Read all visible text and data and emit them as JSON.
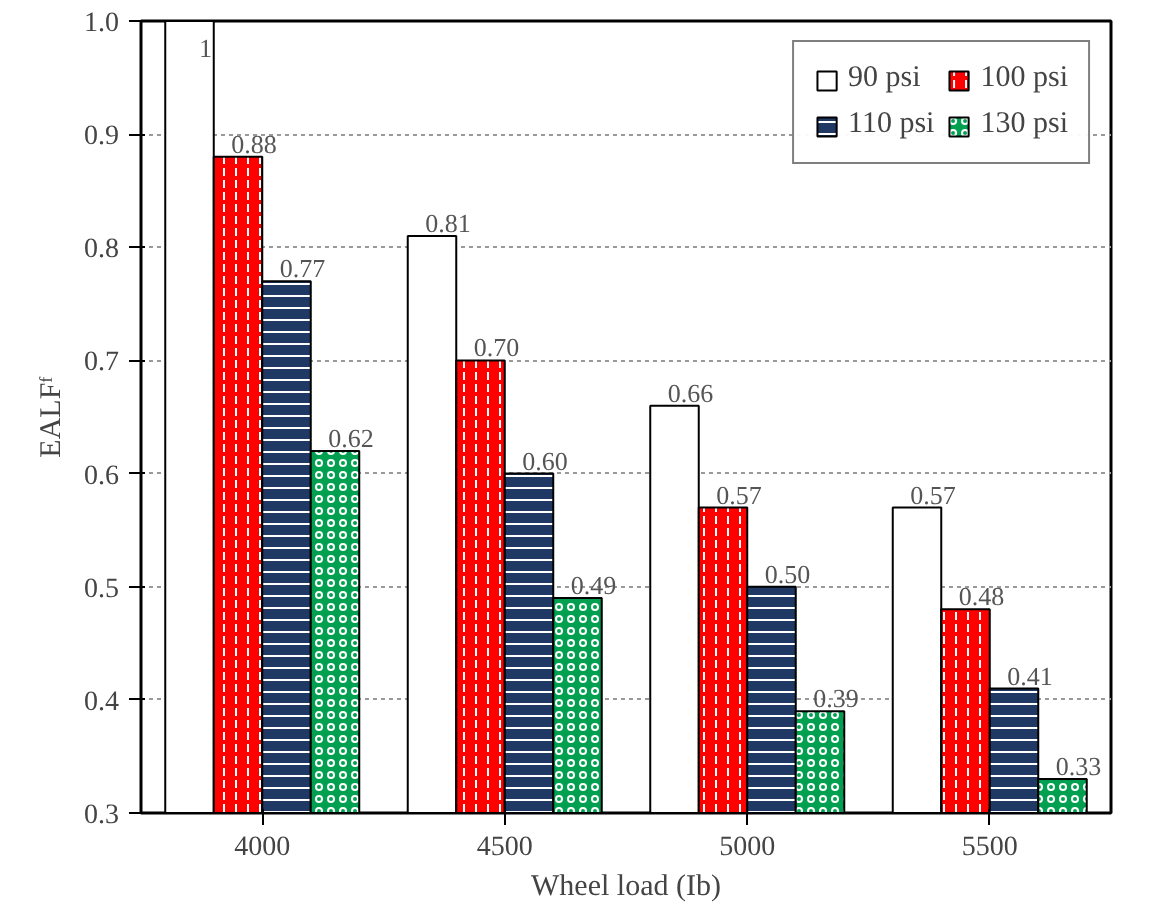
{
  "chart_data": {
    "type": "bar",
    "xlabel": "Wheel load (Ib)",
    "ylabel": "EALFᶠ",
    "categories": [
      "4000",
      "4500",
      "5000",
      "5500"
    ],
    "ylim": [
      0.3,
      1.0
    ],
    "yticks": [
      0.3,
      0.4,
      0.5,
      0.6,
      0.7,
      0.8,
      0.9,
      {
        "value": 1.0,
        "label": "1.0"
      }
    ],
    "grid": "y",
    "legend": "top right",
    "series": [
      {
        "name": "90 psi",
        "color": "#ffffff",
        "values": [
          1,
          0.81,
          0.66,
          0.57
        ],
        "value_labels": [
          "1",
          "0.81",
          "0.66",
          "0.57"
        ]
      },
      {
        "name": "100 psi",
        "color": "#ff0000",
        "values": [
          0.88,
          0.7,
          0.57,
          0.48
        ],
        "value_labels": [
          "0.88",
          "0.70",
          "0.57",
          "0.48"
        ]
      },
      {
        "name": "110 psi",
        "color": "#1f3864",
        "values": [
          0.77,
          0.6,
          0.5,
          0.41
        ],
        "value_labels": [
          "0.77",
          "0.60",
          "0.50",
          "0.41"
        ]
      },
      {
        "name": "130 psi",
        "color": "#00a050",
        "values": [
          0.62,
          0.49,
          0.39,
          0.33
        ],
        "value_labels": [
          "0.62",
          "0.49",
          "0.39",
          "0.33"
        ]
      }
    ]
  }
}
